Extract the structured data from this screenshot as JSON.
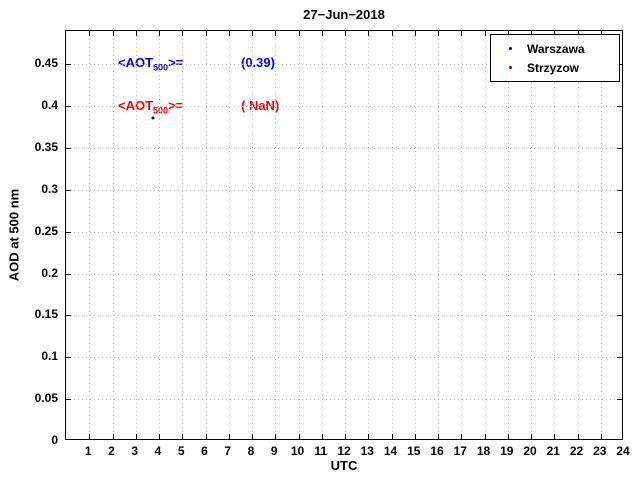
{
  "chart_data": {
    "type": "scatter",
    "title": "27−Jun−2018",
    "xlabel": "UTC",
    "ylabel": "AOD at 500 nm",
    "xlim": [
      0,
      24
    ],
    "ylim": [
      0,
      0.49
    ],
    "grid": true,
    "legend_position": "top-right-inside",
    "xticks": [
      1,
      2,
      3,
      4,
      5,
      6,
      7,
      8,
      9,
      10,
      11,
      12,
      13,
      14,
      15,
      16,
      17,
      18,
      19,
      20,
      21,
      22,
      23,
      24
    ],
    "xtick_labels": [
      "1",
      "2",
      "3",
      "4",
      "5",
      "6",
      "7",
      "8",
      "9",
      "10",
      "11",
      "12",
      "13",
      "14",
      "15",
      "16",
      "17",
      "18",
      "19",
      "20",
      "21",
      "22",
      "23",
      "24"
    ],
    "yticks": [
      0,
      0.05,
      0.1,
      0.15,
      0.2,
      0.25,
      0.3,
      0.35,
      0.4,
      0.45
    ],
    "ytick_labels": [
      "0",
      "0.05",
      "0.1",
      "0.15",
      "0.2",
      "0.25",
      "0.3",
      "0.35",
      "0.4",
      "0.45"
    ],
    "series": [
      {
        "name": "Warszawa",
        "color": "#000099",
        "marker": "dot",
        "mean_aot_500": "(0.39)",
        "points": [
          [
            3.75,
            0.386
          ]
        ]
      },
      {
        "name": "Strzyzow",
        "color": "#990000",
        "marker": "dot",
        "mean_aot_500": "( NaN)",
        "points": []
      }
    ],
    "annotations": [
      {
        "pre": "<AOT",
        "sub": "500",
        "post": ">=",
        "value": "(0.39)",
        "color": "#0000FF"
      },
      {
        "pre": "<AOT",
        "sub": "500",
        "post": ">=",
        "value": "( NaN)",
        "color": "#FF0000"
      }
    ]
  }
}
